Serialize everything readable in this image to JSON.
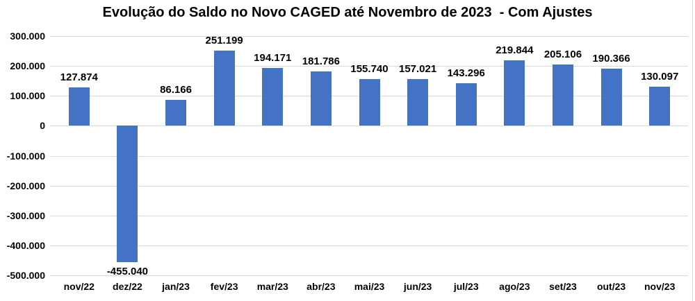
{
  "chart_data": {
    "type": "bar",
    "title": "Evolução do Saldo no Novo CAGED até Novembro de 2023  - Com Ajustes",
    "xlabel": "",
    "ylabel": "",
    "categories": [
      "nov/22",
      "dez/22",
      "jan/23",
      "fev/23",
      "mar/23",
      "abr/23",
      "mai/23",
      "jun/23",
      "jul/23",
      "ago/23",
      "set/23",
      "out/23",
      "nov/23"
    ],
    "values": [
      127874,
      -455040,
      86166,
      251199,
      194171,
      181786,
      155740,
      157021,
      143296,
      219844,
      205106,
      190366,
      130097
    ],
    "value_labels": [
      "127.874",
      "-455.040",
      "86.166",
      "251.199",
      "194.171",
      "181.786",
      "155.740",
      "157.021",
      "143.296",
      "219.844",
      "205.106",
      "190.366",
      "130.097"
    ],
    "ylim": [
      -500000,
      300000
    ],
    "y_axis": {
      "ticks": [
        {
          "value": 300000,
          "label": "300.000"
        },
        {
          "value": 200000,
          "label": "200.000"
        },
        {
          "value": 100000,
          "label": "100.000"
        },
        {
          "value": 0,
          "label": "0"
        },
        {
          "value": -100000,
          "label": "-100.000"
        },
        {
          "value": -200000,
          "label": "-200.000"
        },
        {
          "value": -300000,
          "label": "-300.000"
        },
        {
          "value": -400000,
          "label": "-400.000"
        },
        {
          "value": -500000,
          "label": "-500.000"
        }
      ]
    },
    "grid": true,
    "legend_position": "none",
    "bar_color": "#4472C4",
    "gridline_color": "#d9d9d9",
    "text_color": "#000000"
  }
}
